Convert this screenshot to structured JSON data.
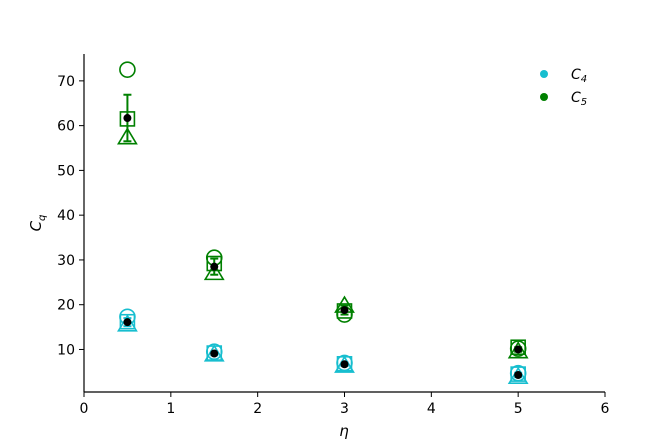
{
  "chart_data": {
    "type": "scatter",
    "title": "",
    "xlabel": "η",
    "ylabel_base": "C",
    "ylabel_sub": "q",
    "xlim": [
      0,
      6
    ],
    "ylim": [
      0.5,
      76
    ],
    "xticks": [
      0,
      1,
      2,
      3,
      4,
      5,
      6
    ],
    "yticks": [
      10,
      20,
      30,
      40,
      50,
      60,
      70
    ],
    "grid": false,
    "legend_position": "top-right",
    "mean_color": "#000000",
    "series": [
      {
        "name_base": "C",
        "name_sub": "4",
        "color": "#17becf",
        "x": [
          0.5,
          1.5,
          3,
          5
        ],
        "circle": [
          17.3,
          9.5,
          7.0,
          4.7
        ],
        "square": [
          16.2,
          9.2,
          6.8,
          4.5
        ],
        "triangle": [
          15.5,
          8.8,
          6.3,
          3.8
        ],
        "mean": [
          16.1,
          9.1,
          6.7,
          4.3
        ],
        "err": [
          0.9,
          0.4,
          0.4,
          0.5
        ]
      },
      {
        "name_base": "C",
        "name_sub": "5",
        "color": "#008000",
        "x": [
          0.5,
          1.5,
          3,
          5
        ],
        "circle": [
          72.5,
          30.5,
          17.8,
          10.2
        ],
        "square": [
          61.5,
          29.2,
          18.6,
          10.5
        ],
        "triangle": [
          57.3,
          27.0,
          19.7,
          9.5
        ],
        "mean": [
          61.7,
          28.5,
          18.8,
          10.0
        ],
        "err": [
          5.2,
          1.8,
          1.0,
          0.5
        ]
      }
    ]
  }
}
